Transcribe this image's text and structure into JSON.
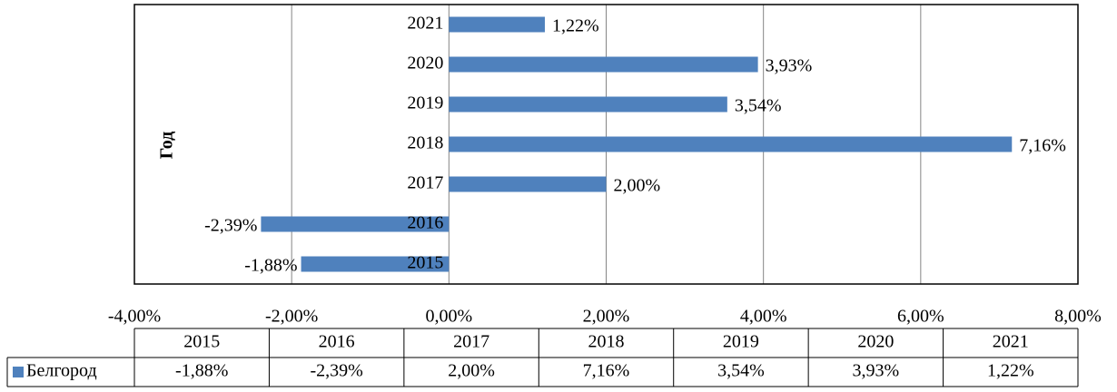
{
  "chart_data": {
    "type": "bar",
    "orientation": "horizontal",
    "ylabel": "Год",
    "categories": [
      "2015",
      "2016",
      "2017",
      "2018",
      "2019",
      "2020",
      "2021"
    ],
    "series": [
      {
        "name": "Белгород",
        "color": "#4f81bd",
        "values": [
          -1.88,
          -2.39,
          2.0,
          7.16,
          3.54,
          3.93,
          1.22
        ],
        "value_labels": [
          "-1,88%",
          "-2,39%",
          "2,00%",
          "7,16%",
          "3,54%",
          "3,93%",
          "1,22%"
        ]
      }
    ],
    "xlim": [
      -4,
      8
    ],
    "xticks": [
      {
        "value": -4,
        "label": "-4,00%"
      },
      {
        "value": -2,
        "label": "-2,00%"
      },
      {
        "value": 0,
        "label": "0,00%"
      },
      {
        "value": 2,
        "label": "2,00%"
      },
      {
        "value": 4,
        "label": "4,00%"
      },
      {
        "value": 6,
        "label": "6,00%"
      },
      {
        "value": 8,
        "label": "8,00%"
      }
    ],
    "grid": true,
    "data_table": true
  }
}
